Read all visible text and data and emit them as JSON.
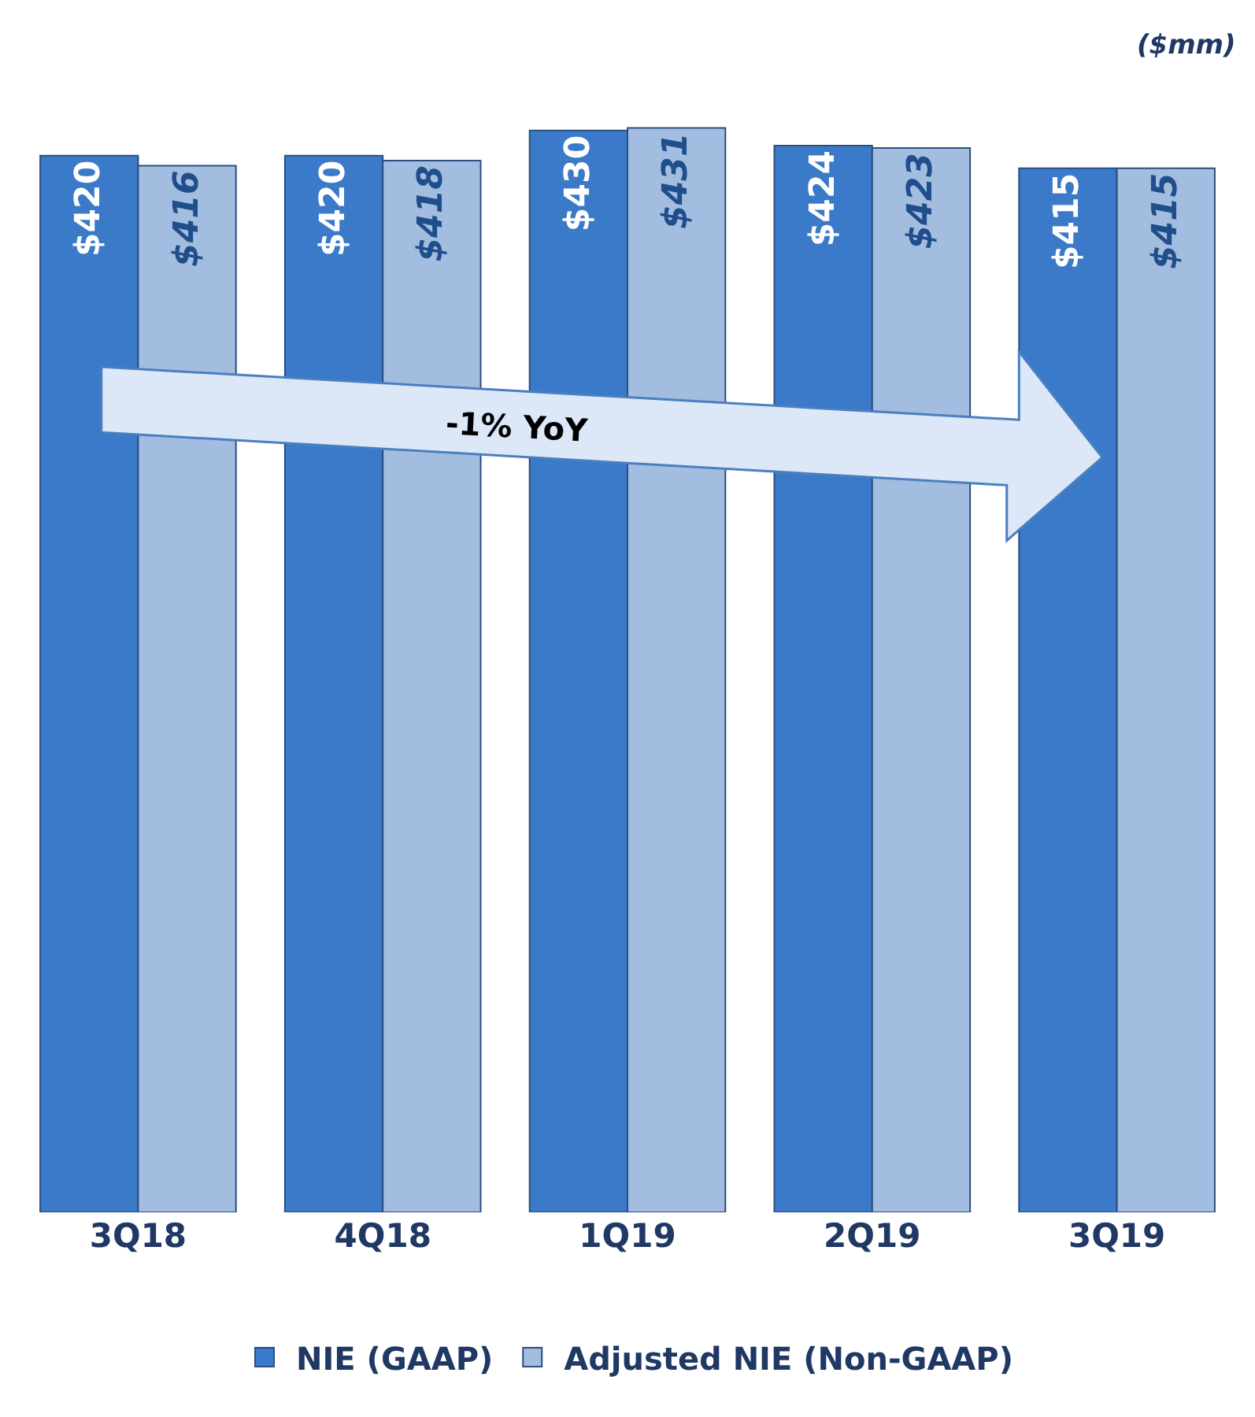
{
  "chart_data": {
    "type": "bar",
    "categories": [
      "3Q18",
      "4Q18",
      "1Q19",
      "2Q19",
      "3Q19"
    ],
    "series": [
      {
        "name": "NIE (GAAP)",
        "color": "#3b7ac8",
        "values": [
          420,
          420,
          430,
          424,
          415
        ],
        "value_labels": [
          "$420",
          "$420",
          "$430",
          "$424",
          "$415"
        ]
      },
      {
        "name": "Adjusted NIE (Non-GAAP)",
        "color": "#a3bde0",
        "values": [
          416,
          418,
          431,
          423,
          415
        ],
        "value_labels": [
          "$416",
          "$418",
          "$431",
          "$423",
          "$415"
        ]
      }
    ],
    "tick_labels": "x",
    "legend": "bottom",
    "annotations": [
      "($mm)",
      "-1% YoY"
    ]
  }
}
